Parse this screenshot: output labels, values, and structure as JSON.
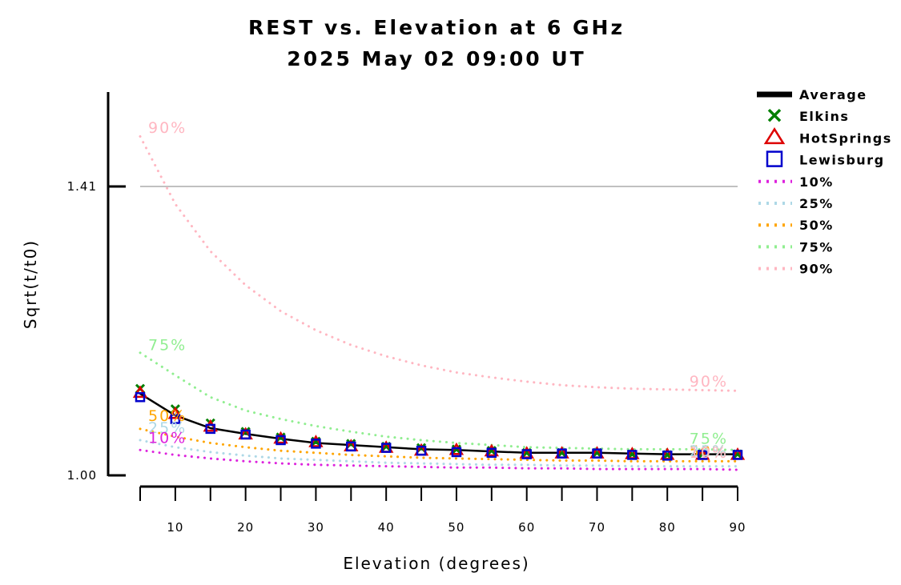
{
  "chart_data": {
    "type": "line",
    "title": "REST vs. Elevation at 6 GHz",
    "subtitle": "2025 May 02 09:00 UT",
    "xlabel": "Elevation (degrees)",
    "ylabel": "Sqrt(t/t0)",
    "xlim": [
      5,
      90
    ],
    "ylim": [
      1.0,
      1.41
    ],
    "y_display_max": 1.545,
    "xticks": [
      5,
      10,
      15,
      20,
      25,
      30,
      35,
      40,
      45,
      50,
      55,
      60,
      65,
      70,
      75,
      80,
      85,
      90
    ],
    "xtick_labels": [
      {
        "value": 10,
        "label": "10"
      },
      {
        "value": 20,
        "label": "20"
      },
      {
        "value": 30,
        "label": "30"
      },
      {
        "value": 40,
        "label": "40"
      },
      {
        "value": 50,
        "label": "50"
      },
      {
        "value": 60,
        "label": "60"
      },
      {
        "value": 70,
        "label": "70"
      },
      {
        "value": 80,
        "label": "80"
      },
      {
        "value": 90,
        "label": "90"
      }
    ],
    "yticks": [
      {
        "value": 1.0,
        "label": "1.00"
      },
      {
        "value": 1.41,
        "label": "1.41"
      }
    ],
    "reference_line": {
      "y": 1.41,
      "color": "#c0c0c0"
    },
    "legend_position": "top-right",
    "x": [
      5,
      10,
      15,
      20,
      25,
      30,
      35,
      40,
      45,
      50,
      55,
      60,
      65,
      70,
      75,
      80,
      85,
      90
    ],
    "series": [
      {
        "name": "Average",
        "style": "line",
        "color": "#000000",
        "values": [
          1.116,
          1.085,
          1.067,
          1.059,
          1.052,
          1.046,
          1.043,
          1.04,
          1.037,
          1.036,
          1.034,
          1.032,
          1.032,
          1.032,
          1.031,
          1.03,
          1.03,
          1.03
        ]
      },
      {
        "name": "Elkins",
        "style": "marker",
        "marker": "x",
        "color": "#008000",
        "values": [
          1.123,
          1.094,
          1.074,
          1.062,
          1.054,
          1.048,
          1.045,
          1.041,
          1.039,
          1.037,
          1.035,
          1.032,
          1.032,
          1.032,
          1.03,
          1.029,
          1.03,
          1.03
        ]
      },
      {
        "name": "HotSprings",
        "style": "marker",
        "marker": "triangle",
        "color": "#dd0000",
        "values": [
          1.117,
          1.087,
          1.069,
          1.058,
          1.052,
          1.047,
          1.041,
          1.039,
          1.035,
          1.036,
          1.034,
          1.031,
          1.031,
          1.031,
          1.03,
          1.029,
          1.029,
          1.029
        ]
      },
      {
        "name": "Lewisburg",
        "style": "marker",
        "marker": "square",
        "color": "#0000cc",
        "values": [
          1.111,
          1.08,
          1.066,
          1.058,
          1.05,
          1.045,
          1.041,
          1.039,
          1.035,
          1.033,
          1.032,
          1.03,
          1.031,
          1.031,
          1.029,
          1.028,
          1.029,
          1.029
        ]
      },
      {
        "name": "10%",
        "style": "dotted",
        "color": "#dd22dd",
        "values": [
          1.036,
          1.029,
          1.024,
          1.02,
          1.017,
          1.015,
          1.014,
          1.013,
          1.012,
          1.011,
          1.011,
          1.01,
          1.01,
          1.009,
          1.009,
          1.009,
          1.009,
          1.008
        ]
      },
      {
        "name": "25%",
        "style": "dotted",
        "color": "#add8e6",
        "values": [
          1.05,
          1.04,
          1.033,
          1.028,
          1.024,
          1.022,
          1.02,
          1.018,
          1.017,
          1.016,
          1.015,
          1.015,
          1.014,
          1.014,
          1.013,
          1.013,
          1.013,
          1.013
        ]
      },
      {
        "name": "50%",
        "style": "dotted",
        "color": "#ffa500",
        "values": [
          1.066,
          1.055,
          1.046,
          1.04,
          1.035,
          1.032,
          1.029,
          1.027,
          1.025,
          1.024,
          1.023,
          1.022,
          1.021,
          1.021,
          1.02,
          1.02,
          1.02,
          1.02
        ]
      },
      {
        "name": "75%",
        "style": "dotted",
        "color": "#90ee90",
        "values": [
          1.174,
          1.142,
          1.111,
          1.092,
          1.08,
          1.07,
          1.062,
          1.055,
          1.05,
          1.046,
          1.043,
          1.04,
          1.039,
          1.038,
          1.037,
          1.037,
          1.037,
          1.036
        ]
      },
      {
        "name": "90%",
        "style": "dotted",
        "color": "#ffb6c1",
        "values": [
          1.481,
          1.385,
          1.318,
          1.27,
          1.233,
          1.206,
          1.185,
          1.169,
          1.156,
          1.146,
          1.139,
          1.133,
          1.128,
          1.125,
          1.123,
          1.122,
          1.121,
          1.12
        ]
      }
    ],
    "percentile_labels": [
      {
        "series": "90%",
        "text": "90%",
        "x": 5,
        "y": 1.486,
        "color": "#ffb6c1"
      },
      {
        "series": "75%",
        "text": "75%",
        "x": 5,
        "y": 1.178,
        "color": "#90ee90"
      },
      {
        "series": "50%",
        "text": "50%",
        "x": 5,
        "y": 1.077,
        "color": "#ffa500"
      },
      {
        "series": "25%",
        "text": "25%",
        "x": 5,
        "y": 1.06,
        "color": "#add8e6"
      },
      {
        "series": "10%",
        "text": "10%",
        "x": 5,
        "y": 1.046,
        "color": "#dd22dd"
      },
      {
        "series": "90%",
        "text": "90%",
        "x": 82,
        "y": 1.126,
        "color": "#ffb6c1"
      },
      {
        "series": "75%",
        "text": "75%",
        "x": 82,
        "y": 1.045,
        "color": "#90ee90"
      },
      {
        "series": "50%",
        "text": "50%",
        "x": 82,
        "y": 1.027,
        "color": "#ffa500"
      },
      {
        "series": "25%",
        "text": "25%",
        "x": 82,
        "y": 1.027,
        "color": "#add8e6"
      },
      {
        "series": "10%",
        "text": "10%",
        "x": 82,
        "y": 1.025,
        "color": "#ffb6c1"
      }
    ]
  }
}
